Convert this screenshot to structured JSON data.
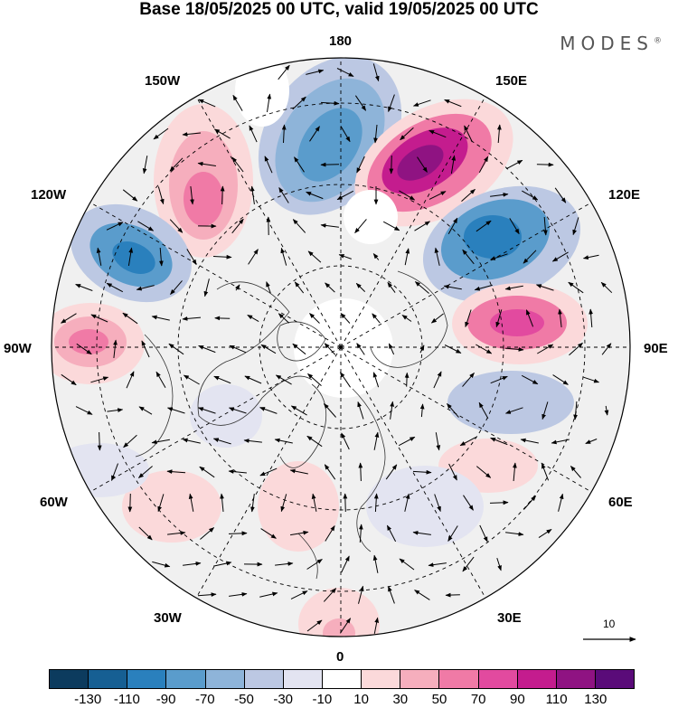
{
  "header": {
    "title": "Base 18/05/2025 00 UTC, valid 19/05/2025 00 UTC",
    "brand": "MODES",
    "brand_mark": "®"
  },
  "map": {
    "projection": "north-polar-stereographic",
    "longitude_labels": {
      "n180": "180",
      "w150": "150W",
      "e150": "150E",
      "w120": "120W",
      "e120": "120E",
      "w90": "90W",
      "e90": "90E",
      "w60": "60W",
      "e60": "60E",
      "w30": "30W",
      "e30": "30E",
      "s0": "0"
    },
    "reference_vector_label": "10"
  },
  "colorbar": {
    "colors": [
      "#0c3b5e",
      "#165f93",
      "#2a80bd",
      "#5a9ccc",
      "#8eb4d9",
      "#bcc8e3",
      "#e3e4f1",
      "#ffffff",
      "#fbd9da",
      "#f6aebd",
      "#f07aa6",
      "#e24a9f",
      "#c41c8e",
      "#8f1382",
      "#5a0b79"
    ],
    "tick_labels": [
      "-130",
      "-110",
      "-90",
      "-70",
      "-50",
      "-30",
      "-10",
      "10",
      "30",
      "50",
      "70",
      "90",
      "110",
      "130"
    ]
  }
}
